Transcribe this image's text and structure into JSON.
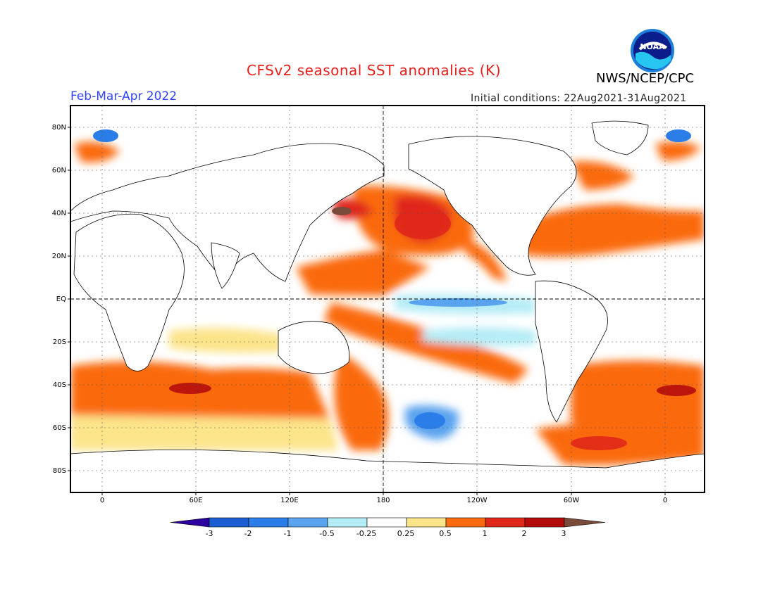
{
  "title": "CFSv2 seasonal SST anomalies (K)",
  "agency": "NWS/NCEP/CPC",
  "logo_text": "NOAA",
  "period": "Feb-Mar-Apr 2022",
  "initial_conditions": "Initial conditions: 22Aug2021-31Aug2021",
  "lat_labels": [
    "80N",
    "60N",
    "40N",
    "20N",
    "EQ",
    "20S",
    "40S",
    "60S",
    "80S"
  ],
  "lon_labels": [
    "0",
    "60E",
    "120E",
    "180",
    "120W",
    "60W",
    "0"
  ],
  "colorbar": {
    "labels": [
      "-3",
      "-2",
      "-1",
      "-0.5",
      "-0.25",
      "0.25",
      "0.5",
      "1",
      "2",
      "3"
    ],
    "colors": [
      "#2d00a0",
      "#1a5ed1",
      "#2b7de8",
      "#5aa3ee",
      "#b4ecf6",
      "#ffffff",
      "#fce48a",
      "#fa6a10",
      "#e0281a",
      "#b40c0c",
      "#7a4a3a"
    ]
  },
  "chart_data": {
    "type": "heatmap",
    "title": "CFSv2 seasonal SST anomalies (K)",
    "period": "Feb-Mar-Apr 2022",
    "units": "K",
    "lon_range": [
      -20,
      360
    ],
    "lat_range": [
      -90,
      90
    ],
    "levels": [
      -3,
      -2,
      -1,
      -0.5,
      -0.25,
      0.25,
      0.5,
      1,
      2,
      3
    ],
    "anomaly_regions": [
      {
        "lon": 160,
        "lat": 35,
        "value": 2
      },
      {
        "lon": 210,
        "lat": 32,
        "value": 2
      },
      {
        "lon": 175,
        "lat": 8,
        "value": 1
      },
      {
        "lon": 210,
        "lat": -15,
        "value": 1
      },
      {
        "lon": 235,
        "lat": -2,
        "value": -0.5
      },
      {
        "lon": 205,
        "lat": -60,
        "value": -1
      },
      {
        "lon": 20,
        "lat": -45,
        "value": 1
      },
      {
        "lon": 60,
        "lat": -44,
        "value": 2
      },
      {
        "lon": 155,
        "lat": -45,
        "value": 1
      },
      {
        "lon": 330,
        "lat": -45,
        "value": 2
      },
      {
        "lon": 300,
        "lat": -70,
        "value": 1
      },
      {
        "lon": 310,
        "lat": 40,
        "value": 1
      },
      {
        "lon": 300,
        "lat": 25,
        "value": 1
      },
      {
        "lon": 0,
        "lat": 75,
        "value": -1
      }
    ]
  }
}
